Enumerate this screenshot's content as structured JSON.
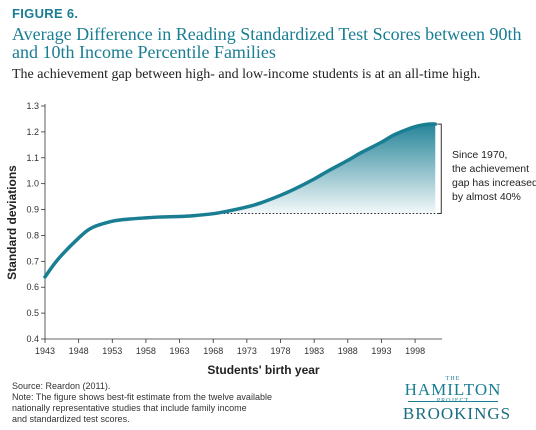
{
  "header": {
    "figure_label": "FIGURE 6.",
    "title": "Average Difference in Reading Standardized Test Scores between 90th and 10th Income Percentile Families",
    "subtitle": "The achievement gap between high- and low-income students is at an all-time high."
  },
  "annotation": {
    "line1": "Since 1970,",
    "line2": "the achievement",
    "line3": "gap has increased",
    "line4": "by almost 40%"
  },
  "footer": {
    "source": "Source: Reardon (2011).",
    "note_line1": "Note: The figure shows best-fit estimate from the twelve available",
    "note_line2": "nationally representative studies that include family income",
    "note_line3": "and standardized test scores."
  },
  "logo": {
    "the": "THE",
    "hamilton": "HAMILTON",
    "project": "PROJECT",
    "brookings": "BROOKINGS"
  },
  "colors": {
    "accent": "#1a7e93",
    "line": "#1a7e93"
  },
  "chart_data": {
    "type": "line",
    "xlabel": "Students' birth year",
    "ylabel": "Standard deviations",
    "x_ticks": [
      "1943",
      "1948",
      "1953",
      "1958",
      "1963",
      "1968",
      "1973",
      "1978",
      "1983",
      "1988",
      "1993",
      "1998"
    ],
    "y_ticks": [
      "0.4",
      "0.5",
      "0.6",
      "0.7",
      "0.8",
      "0.9",
      "1.0",
      "1.1",
      "1.2",
      "1.3"
    ],
    "xlim": [
      1943,
      2002
    ],
    "ylim": [
      0.4,
      1.3
    ],
    "grid": false,
    "x": [
      1943,
      1945,
      1948,
      1950,
      1953,
      1955,
      1958,
      1960,
      1963,
      1965,
      1968,
      1970,
      1973,
      1975,
      1978,
      1980,
      1983,
      1985,
      1988,
      1990,
      1993,
      1995,
      1998,
      2000,
      2001
    ],
    "y": [
      0.64,
      0.71,
      0.79,
      0.83,
      0.855,
      0.862,
      0.868,
      0.871,
      0.873,
      0.876,
      0.884,
      0.893,
      0.91,
      0.925,
      0.955,
      0.978,
      1.018,
      1.048,
      1.09,
      1.12,
      1.16,
      1.19,
      1.22,
      1.23,
      1.23
    ],
    "reference_value": 0.885,
    "shaded_from_year": 1968
  }
}
